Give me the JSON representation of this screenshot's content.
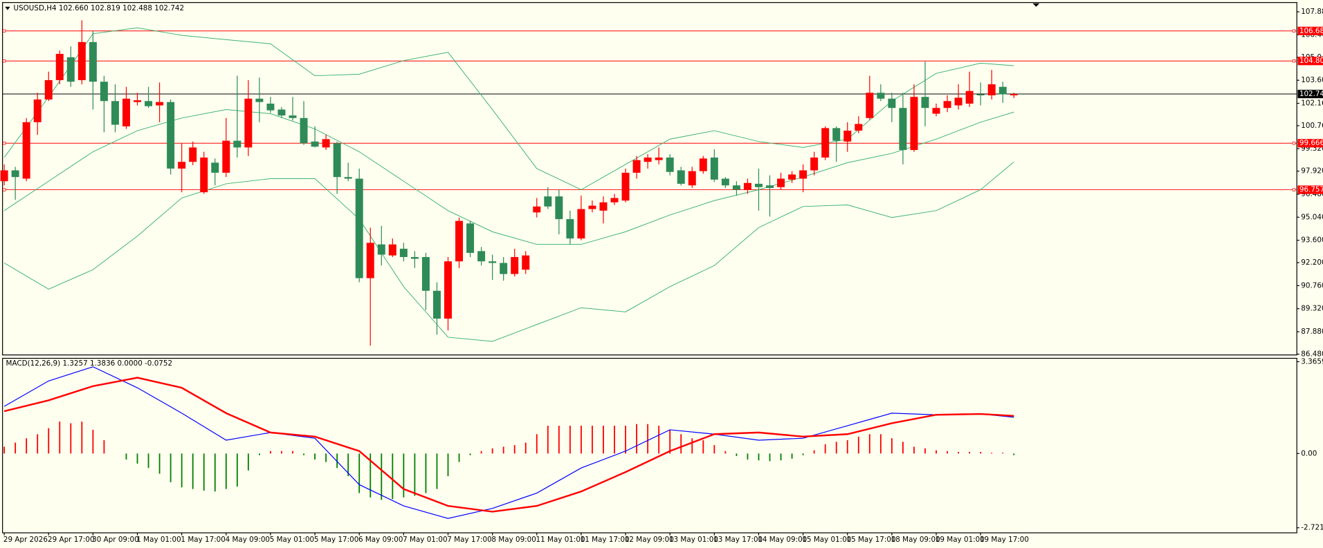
{
  "chart_data": [
    {
      "type": "candlestick",
      "title": "USOUSD,H4  102.660 102.819 102.488 102.742",
      "categories": [
        "29 Apr 2026",
        null,
        null,
        null,
        "29 Apr 17:00",
        null,
        null,
        null,
        "30 Apr 09:00",
        null,
        null,
        null,
        "1 May 01:00",
        null,
        null,
        null,
        "1 May 17:00",
        null,
        null,
        null,
        "4 May 09:00",
        null,
        null,
        null,
        "5 May 01:00",
        null,
        null,
        null,
        "5 May 17:00",
        null,
        null,
        null,
        "6 May 09:00",
        null,
        null,
        null,
        "7 May 01:00",
        null,
        null,
        null,
        "7 May 17:00",
        null,
        null,
        null,
        "8 May 09:00",
        null,
        null,
        null,
        "11 May 01:00",
        null,
        null,
        null,
        "11 May 17:00",
        null,
        null,
        null,
        "12 May 09:00",
        null,
        null,
        null,
        "13 May 01:00",
        null,
        null,
        null,
        "13 May 17:00",
        null,
        null,
        null,
        "14 May 09:00",
        null,
        null,
        null,
        "15 May 01:00",
        null,
        null,
        null,
        "15 May 17:00",
        null,
        null,
        null,
        "18 May 09:00",
        null,
        null,
        null,
        "19 May 01:00",
        null,
        null,
        null,
        "19 May 17:00",
        null,
        null,
        null
      ],
      "ohlc": [
        [
          97.29,
          98.34,
          97.03,
          97.97
        ],
        [
          97.97,
          98.19,
          96.13,
          97.55
        ],
        [
          97.45,
          101.24,
          97.29,
          100.98
        ],
        [
          100.98,
          102.82,
          100.19,
          102.4
        ],
        [
          102.4,
          104.14,
          102.3,
          103.61
        ],
        [
          103.61,
          105.46,
          103.35,
          105.25
        ],
        [
          105.04,
          105.72,
          103.19,
          103.51
        ],
        [
          103.61,
          107.35,
          103.35,
          105.99
        ],
        [
          105.99,
          106.67,
          101.77,
          103.51
        ],
        [
          103.51,
          103.88,
          100.35,
          102.3
        ],
        [
          102.3,
          103.35,
          100.35,
          100.82
        ],
        [
          100.72,
          103.19,
          100.56,
          102.45
        ],
        [
          102.24,
          102.82,
          102.03,
          102.35
        ],
        [
          102.3,
          103.19,
          101.87,
          101.98
        ],
        [
          102.03,
          103.46,
          100.98,
          102.24
        ],
        [
          102.24,
          102.4,
          97.71,
          98.08
        ],
        [
          98.08,
          99.66,
          96.6,
          98.5
        ],
        [
          98.5,
          99.77,
          98.29,
          99.4
        ],
        [
          96.6,
          99.13,
          96.5,
          98.77
        ],
        [
          98.45,
          98.71,
          97.03,
          97.82
        ],
        [
          97.82,
          101.24,
          97.55,
          99.82
        ],
        [
          99.82,
          103.88,
          98.77,
          99.4
        ],
        [
          99.4,
          103.61,
          98.87,
          102.45
        ],
        [
          102.45,
          103.77,
          100.98,
          102.24
        ],
        [
          102.14,
          102.56,
          101.56,
          101.72
        ],
        [
          101.77,
          101.93,
          101.24,
          101.4
        ],
        [
          101.4,
          102.56,
          101.08,
          101.24
        ],
        [
          101.24,
          102.3,
          99.56,
          99.66
        ],
        [
          99.77,
          100.72,
          99.4,
          99.45
        ],
        [
          99.4,
          100.19,
          99.24,
          99.92
        ],
        [
          99.66,
          99.77,
          96.5,
          97.55
        ],
        [
          97.55,
          98.45,
          97.29,
          97.45
        ],
        [
          97.45,
          98.08,
          90.97,
          91.23
        ],
        [
          91.23,
          94.39,
          87.01,
          93.44
        ],
        [
          93.34,
          94.5,
          92.02,
          92.7
        ],
        [
          92.65,
          93.71,
          92.55,
          93.34
        ],
        [
          93.07,
          93.44,
          92.28,
          92.55
        ],
        [
          92.55,
          92.92,
          91.86,
          92.44
        ],
        [
          92.55,
          92.81,
          89.23,
          90.44
        ],
        [
          90.44,
          90.97,
          87.7,
          88.7
        ],
        [
          88.7,
          92.55,
          87.96,
          92.28
        ],
        [
          92.28,
          95.02,
          91.86,
          94.81
        ],
        [
          94.65,
          94.81,
          92.55,
          92.81
        ],
        [
          92.92,
          93.18,
          92.02,
          92.28
        ],
        [
          92.28,
          92.7,
          91.12,
          92.18
        ],
        [
          92.18,
          92.55,
          91.07,
          91.49
        ],
        [
          91.49,
          93.07,
          91.33,
          92.55
        ],
        [
          91.76,
          92.92,
          91.49,
          92.65
        ],
        [
          95.34,
          96.24,
          95.02,
          95.71
        ],
        [
          96.34,
          96.92,
          95.55,
          95.71
        ],
        [
          96.34,
          96.76,
          93.97,
          94.92
        ],
        [
          94.92,
          95.45,
          93.34,
          93.71
        ],
        [
          93.71,
          96.39,
          93.6,
          95.55
        ],
        [
          95.55,
          96.08,
          95.34,
          95.76
        ],
        [
          95.45,
          96.34,
          94.65,
          95.97
        ],
        [
          95.97,
          96.5,
          95.81,
          96.24
        ],
        [
          96.08,
          98.08,
          95.97,
          97.82
        ],
        [
          97.82,
          98.87,
          97.45,
          98.61
        ],
        [
          98.5,
          98.98,
          98.08,
          98.77
        ],
        [
          98.61,
          99.4,
          98.34,
          98.77
        ],
        [
          98.77,
          98.98,
          97.66,
          97.87
        ],
        [
          97.97,
          98.19,
          97.03,
          97.13
        ],
        [
          97.03,
          98.19,
          96.87,
          97.92
        ],
        [
          97.92,
          98.87,
          97.76,
          98.71
        ],
        [
          98.77,
          99.29,
          97.24,
          97.39
        ],
        [
          97.45,
          97.55,
          96.87,
          97.03
        ],
        [
          97.03,
          97.29,
          96.39,
          96.76
        ],
        [
          96.76,
          97.45,
          96.5,
          97.18
        ],
        [
          97.13,
          98.08,
          95.45,
          96.92
        ],
        [
          97.03,
          97.66,
          95.08,
          96.87
        ],
        [
          96.92,
          97.82,
          96.76,
          97.45
        ],
        [
          97.39,
          97.92,
          97.18,
          97.71
        ],
        [
          97.45,
          98.34,
          96.6,
          97.97
        ],
        [
          97.97,
          99.13,
          97.66,
          98.77
        ],
        [
          98.77,
          100.72,
          98.61,
          100.61
        ],
        [
          100.61,
          100.72,
          98.5,
          99.82
        ],
        [
          99.77,
          100.98,
          99.13,
          100.45
        ],
        [
          100.45,
          101.35,
          100.29,
          100.87
        ],
        [
          101.24,
          103.88,
          101.14,
          102.82
        ],
        [
          102.82,
          103.35,
          102.3,
          102.45
        ],
        [
          102.45,
          102.82,
          100.98,
          101.87
        ],
        [
          101.87,
          102.82,
          98.34,
          99.24
        ],
        [
          99.24,
          103.35,
          99.13,
          102.56
        ],
        [
          102.56,
          104.77,
          100.72,
          101.87
        ],
        [
          101.51,
          102.14,
          101.35,
          101.87
        ],
        [
          101.87,
          102.66,
          101.61,
          102.3
        ],
        [
          102.03,
          103.35,
          101.77,
          102.51
        ],
        [
          102.14,
          104.14,
          101.93,
          102.93
        ],
        [
          102.72,
          103.46,
          102.03,
          102.66
        ],
        [
          102.66,
          104.25,
          102.4,
          103.35
        ],
        [
          103.19,
          103.51,
          102.19,
          102.72
        ],
        [
          102.66,
          102.82,
          102.49,
          102.74
        ]
      ],
      "bull_color": "#ff0000",
      "bear_color": "#2e8b57",
      "ylim": [
        86.43,
        108.46
      ],
      "yticks": [
        {
          "value": 107.88,
          "label": "107.880"
        },
        {
          "value": 106.44,
          "label": "106.440"
        },
        {
          "value": 105.04,
          "label": "105.040"
        },
        {
          "value": 103.6,
          "label": "103.600"
        },
        {
          "value": 102.16,
          "label": "102.160"
        },
        {
          "value": 100.76,
          "label": "100.760"
        },
        {
          "value": 99.32,
          "label": "99.320"
        },
        {
          "value": 97.92,
          "label": "97.920"
        },
        {
          "value": 96.48,
          "label": "96.480"
        },
        {
          "value": 95.04,
          "label": "95.040"
        },
        {
          "value": 93.6,
          "label": "93.600"
        },
        {
          "value": 92.2,
          "label": "92.200"
        },
        {
          "value": 90.76,
          "label": "90.760"
        },
        {
          "value": 89.32,
          "label": "89.320"
        },
        {
          "value": 87.88,
          "label": "87.880"
        },
        {
          "value": 86.48,
          "label": "86.480"
        }
      ],
      "levels": [
        106.684,
        104.807,
        99.666,
        96.757
      ],
      "level_color": "#ff0000",
      "current_price": 102.742,
      "series": [
        {
          "color": "#3cb371",
          "x": [
            0,
            4,
            8,
            12,
            16,
            20,
            24,
            28,
            32,
            36,
            40,
            44,
            48,
            52,
            56,
            60,
            64,
            68,
            72,
            76,
            80,
            84,
            88,
            91
          ],
          "values": [
            98.77,
            102.56,
            106.51,
            106.88,
            106.41,
            106.14,
            105.88,
            103.88,
            103.98,
            104.83,
            105.35,
            101.77,
            98.08,
            96.76,
            98.34,
            99.92,
            100.45,
            99.77,
            99.4,
            99.92,
            102.3,
            104.03,
            104.67,
            104.51
          ]
        },
        {
          "color": "#3cb371",
          "x": [
            0,
            4,
            8,
            12,
            16,
            20,
            24,
            28,
            32,
            36,
            40,
            44,
            48,
            52,
            56,
            60,
            64,
            68,
            72,
            76,
            80,
            84,
            88,
            91
          ],
          "values": [
            95.45,
            97.29,
            99.13,
            100.45,
            101.24,
            101.77,
            101.51,
            100.56,
            99.13,
            97.29,
            95.45,
            94.13,
            93.34,
            93.34,
            94.13,
            95.18,
            96.08,
            96.76,
            97.55,
            98.45,
            99.03,
            99.92,
            100.98,
            101.61
          ]
        },
        {
          "color": "#3cb371",
          "x": [
            0,
            4,
            8,
            12,
            16,
            20,
            24,
            28,
            32,
            36,
            40,
            44,
            48,
            52,
            56,
            60,
            64,
            68,
            72,
            76,
            80,
            84,
            88,
            91
          ],
          "values": [
            92.18,
            90.54,
            91.76,
            93.86,
            96.24,
            97.13,
            97.45,
            97.45,
            94.92,
            90.7,
            87.54,
            87.28,
            88.33,
            89.38,
            89.12,
            90.7,
            92.02,
            94.39,
            95.71,
            95.81,
            95.02,
            95.45,
            96.76,
            98.5
          ]
        }
      ]
    },
    {
      "type": "macd",
      "title": "MACD(12,26,9) 1.3257 1.3836 0.0000 -0.0752",
      "histogram": [
        0.25,
        0.4,
        0.56,
        0.71,
        0.93,
        1.17,
        1.11,
        1.17,
        0.87,
        0.49,
        0,
        -0.22,
        -0.37,
        -0.53,
        -0.74,
        -1.05,
        -1.24,
        -1.3,
        -1.36,
        -1.39,
        -1.3,
        -1.21,
        -0.62,
        -0.06,
        0.09,
        0.09,
        0.09,
        -0.06,
        -0.22,
        -0.31,
        -0.53,
        -0.83,
        -1.45,
        -1.61,
        -1.7,
        -1.67,
        -1.61,
        -1.55,
        -1.45,
        -1.3,
        -0.83,
        -0.31,
        -0.06,
        0.09,
        0.19,
        0.25,
        0.31,
        0.4,
        0.71,
        1.02,
        1.02,
        1.02,
        1.02,
        1.02,
        1.02,
        1.02,
        1.02,
        1.08,
        1.08,
        1.02,
        0.87,
        0.71,
        0.56,
        0.49,
        0.31,
        0.09,
        -0.09,
        -0.22,
        -0.25,
        -0.28,
        -0.25,
        -0.19,
        -0.06,
        0.12,
        0.34,
        0.43,
        0.49,
        0.62,
        0.71,
        0.71,
        0.56,
        0.43,
        0.25,
        0.19,
        0.12,
        0.09,
        0.06,
        0.06,
        0.06,
        0.03,
        0.03,
        -0.06
      ],
      "pos_color": "#ff0000",
      "neg_color": "#008000",
      "ylim": [
        -2.906,
        3.49
      ],
      "yticks": [
        3.3659,
        {
          "value": 0,
          "label": "0.00"
        },
        -2.7211
      ],
      "series": [
        {
          "color": "#0000ff",
          "width": 1,
          "x": [
            0,
            4,
            8,
            12,
            16,
            20,
            24,
            28,
            32,
            36,
            40,
            44,
            48,
            52,
            56,
            60,
            64,
            68,
            72,
            76,
            80,
            84,
            88,
            91
          ],
          "values": [
            1.73,
            2.66,
            3.18,
            2.41,
            1.48,
            0.49,
            0.77,
            0.56,
            -1.14,
            -1.92,
            -2.38,
            -2.01,
            -1.45,
            -0.53,
            0.09,
            0.87,
            0.71,
            0.49,
            0.56,
            1.02,
            1.48,
            1.42,
            1.45,
            1.33
          ]
        },
        {
          "color": "#ff0000",
          "width": 2,
          "x": [
            0,
            4,
            8,
            12,
            16,
            20,
            24,
            28,
            32,
            36,
            40,
            44,
            48,
            52,
            56,
            60,
            64,
            68,
            72,
            76,
            80,
            84,
            88,
            91
          ],
          "values": [
            1.55,
            1.95,
            2.47,
            2.78,
            2.41,
            1.48,
            0.77,
            0.62,
            0.09,
            -1.3,
            -1.92,
            -2.13,
            -1.92,
            -1.39,
            -0.68,
            0.09,
            0.71,
            0.77,
            0.62,
            0.71,
            1.11,
            1.42,
            1.45,
            1.38
          ]
        }
      ]
    }
  ]
}
